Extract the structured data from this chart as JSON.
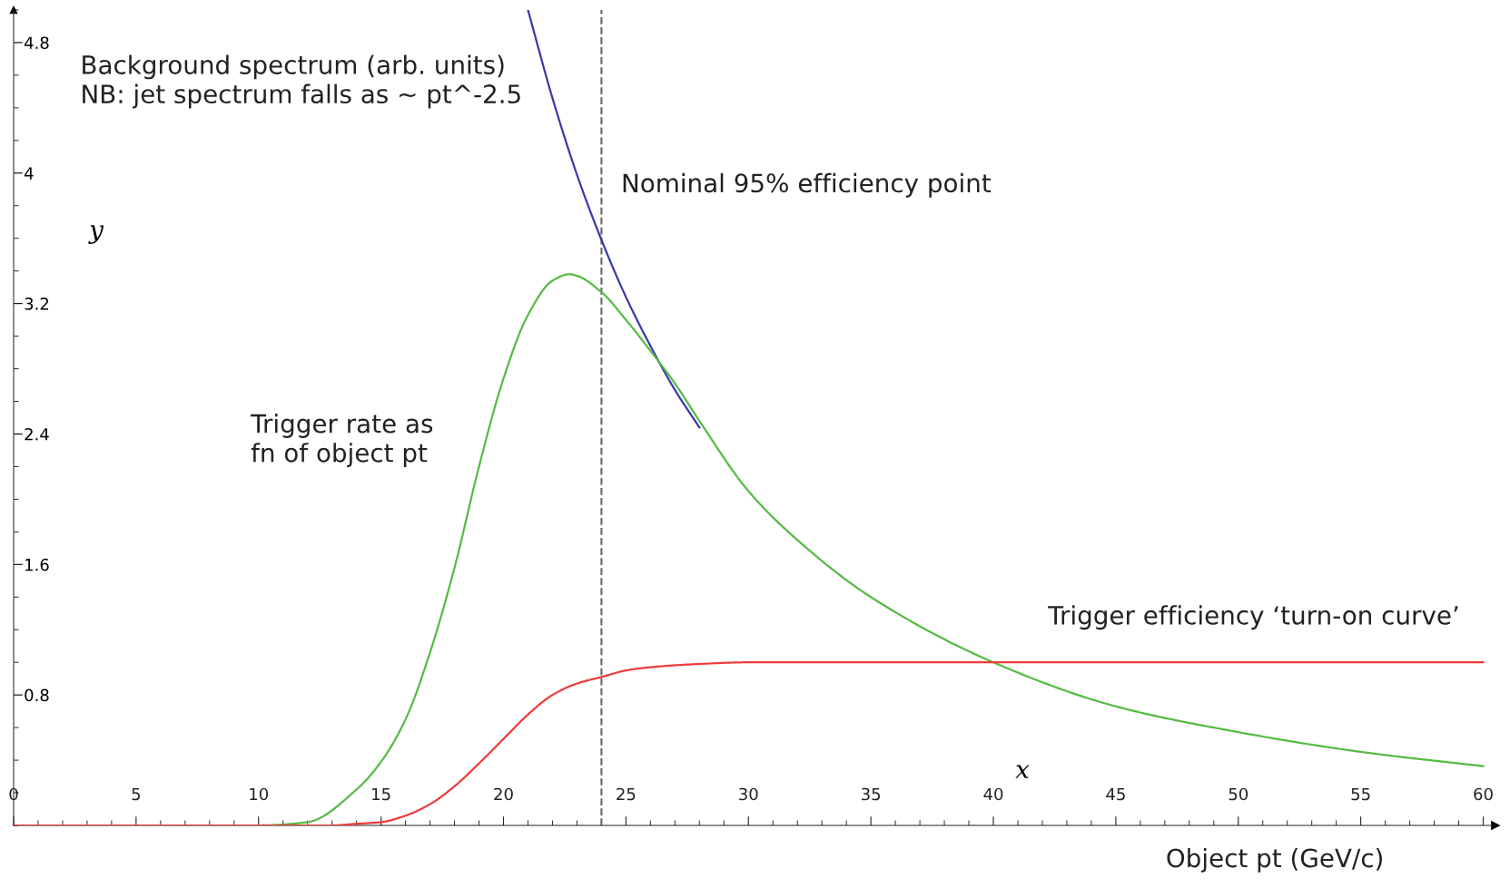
{
  "chart_data": {
    "type": "line",
    "xlabel": "x",
    "ylabel": "y",
    "xlim": [
      0,
      60.5
    ],
    "ylim": [
      0,
      5.0
    ],
    "xticks": [
      0,
      5,
      10,
      15,
      20,
      25,
      30,
      35,
      40,
      45,
      50,
      55,
      60
    ],
    "yticks": [
      0.8,
      1.6,
      2.4,
      3.2,
      4,
      4.8
    ],
    "series": [
      {
        "color": "#3a3aa8",
        "x": [
          21,
          22,
          23,
          24,
          25,
          26,
          27,
          28
        ],
        "values": [
          5.0,
          4.46,
          3.99,
          3.59,
          3.24,
          2.94,
          2.67,
          2.44
        ]
      },
      {
        "color": "#55bb44",
        "x": [
          0,
          10,
          12,
          14,
          15,
          16,
          17,
          18,
          19,
          20,
          21,
          22,
          22.7,
          23,
          24,
          25,
          26,
          27,
          28,
          30,
          32,
          35,
          40,
          45,
          50,
          55,
          60
        ],
        "values": [
          0,
          0,
          0.02,
          0.22,
          0.39,
          0.65,
          1.06,
          1.58,
          2.2,
          2.74,
          3.13,
          3.34,
          3.38,
          3.37,
          3.27,
          3.1,
          2.91,
          2.71,
          2.48,
          2.05,
          1.75,
          1.4,
          1.0,
          0.73,
          0.572,
          0.451,
          0.363
        ]
      },
      {
        "color": "#ee3b3b",
        "x": [
          0,
          13,
          14,
          15,
          16,
          17,
          18,
          19,
          20,
          21,
          22,
          23,
          24,
          25,
          26,
          28,
          30,
          60
        ],
        "values": [
          0,
          0,
          0.01,
          0.02,
          0.06,
          0.13,
          0.24,
          0.38,
          0.53,
          0.68,
          0.8,
          0.87,
          0.91,
          0.95,
          0.97,
          0.99,
          1.0,
          1.0
        ]
      }
    ],
    "ref_lines": [
      {
        "axis": "x",
        "value": 24,
        "label": "Nominal 95% efficiency point",
        "color": "#666666",
        "line_style": "dashed"
      }
    ],
    "annotations": [
      "Background spectrum (arb. units)\nNB: jet spectrum falls as ~ pt^-2.5",
      "Trigger rate as\nfn of object pt",
      "Trigger efficiency ‘turn-on curve’",
      "Object pt (GeV/c)"
    ],
    "grid": false,
    "legend": false,
    "marker": "none",
    "line_style": "solid"
  }
}
